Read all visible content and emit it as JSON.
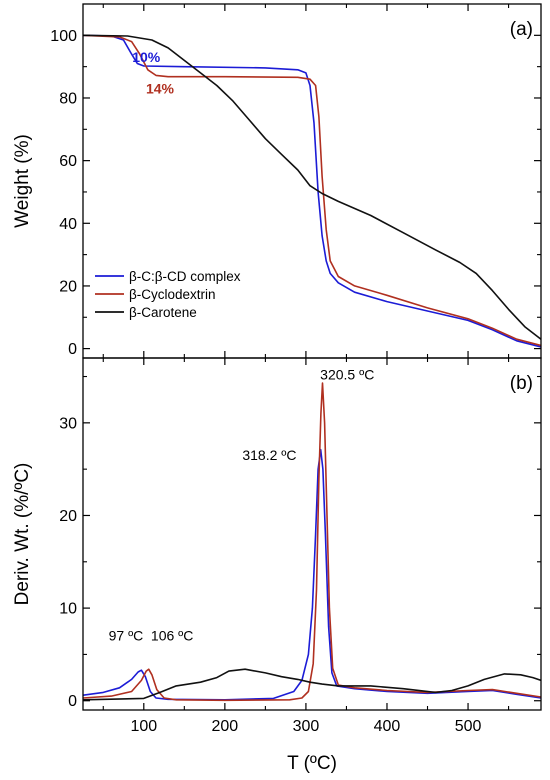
{
  "chart_data": [
    {
      "panel_label": "(a)",
      "type": "line",
      "xlabel": "",
      "ylabel": "Weight (%)",
      "xlim": [
        25,
        590
      ],
      "ylim": [
        -3,
        110
      ],
      "x_ticks": [
        100,
        200,
        300,
        400,
        500
      ],
      "y_ticks": [
        0,
        20,
        40,
        60,
        80,
        100
      ],
      "grid": false,
      "legend_position": "bottom-left",
      "series": [
        {
          "name": "β-C:β-CD complex",
          "color": "#1c1cd6",
          "points": [
            [
              25,
              100
            ],
            [
              60,
              99.8
            ],
            [
              75,
              98.5
            ],
            [
              85,
              94
            ],
            [
              92,
              91
            ],
            [
              100,
              90.2
            ],
            [
              150,
              90
            ],
            [
              250,
              89.6
            ],
            [
              290,
              89
            ],
            [
              300,
              88
            ],
            [
              305,
              84
            ],
            [
              310,
              72
            ],
            [
              315,
              50
            ],
            [
              320,
              36
            ],
            [
              325,
              28
            ],
            [
              330,
              24
            ],
            [
              340,
              21
            ],
            [
              360,
              18
            ],
            [
              400,
              15
            ],
            [
              450,
              12
            ],
            [
              500,
              9
            ],
            [
              530,
              6
            ],
            [
              560,
              2.5
            ],
            [
              590,
              0.5
            ]
          ]
        },
        {
          "name": "β-Cyclodextrin",
          "color": "#b03020",
          "points": [
            [
              25,
              100
            ],
            [
              70,
              99.5
            ],
            [
              85,
              98
            ],
            [
              95,
              94
            ],
            [
              105,
              89
            ],
            [
              115,
              87.2
            ],
            [
              130,
              86.8
            ],
            [
              200,
              86.8
            ],
            [
              290,
              86.6
            ],
            [
              305,
              86
            ],
            [
              312,
              84
            ],
            [
              316,
              74
            ],
            [
              320,
              55
            ],
            [
              325,
              38
            ],
            [
              330,
              28
            ],
            [
              340,
              23
            ],
            [
              360,
              20
            ],
            [
              400,
              17
            ],
            [
              450,
              13
            ],
            [
              500,
              9.5
            ],
            [
              530,
              6.5
            ],
            [
              560,
              3
            ],
            [
              590,
              1
            ]
          ]
        },
        {
          "name": "β-Carotene",
          "color": "#111111",
          "points": [
            [
              25,
              100
            ],
            [
              80,
              99.8
            ],
            [
              110,
              98.5
            ],
            [
              130,
              96
            ],
            [
              150,
              92
            ],
            [
              170,
              88
            ],
            [
              190,
              84
            ],
            [
              210,
              79
            ],
            [
              230,
              73
            ],
            [
              250,
              67
            ],
            [
              270,
              62
            ],
            [
              290,
              57
            ],
            [
              305,
              52
            ],
            [
              320,
              49.5
            ],
            [
              340,
              47
            ],
            [
              380,
              42.5
            ],
            [
              420,
              37
            ],
            [
              460,
              31.5
            ],
            [
              490,
              27.5
            ],
            [
              510,
              24
            ],
            [
              530,
              18.5
            ],
            [
              550,
              12.5
            ],
            [
              570,
              7
            ],
            [
              590,
              3
            ]
          ]
        }
      ],
      "annotations": [
        {
          "text": "10%",
          "x": 103,
          "y": 91.5,
          "color": "#1c1cd6"
        },
        {
          "text": "14%",
          "x": 120,
          "y": 81.5,
          "color": "#b03020"
        }
      ]
    },
    {
      "panel_label": "(b)",
      "type": "line",
      "xlabel": "T (ºC)",
      "ylabel": "Deriv. Wt. (%/ºC)",
      "xlim": [
        25,
        590
      ],
      "ylim": [
        -1,
        37
      ],
      "x_ticks": [
        100,
        200,
        300,
        400,
        500
      ],
      "y_ticks": [
        0,
        10,
        20,
        30
      ],
      "grid": false,
      "series": [
        {
          "name": "β-C:β-CD complex",
          "color": "#1c1cd6",
          "points": [
            [
              25,
              0.6
            ],
            [
              50,
              0.9
            ],
            [
              70,
              1.4
            ],
            [
              85,
              2.3
            ],
            [
              93,
              3.1
            ],
            [
              97,
              3.3
            ],
            [
              102,
              2.6
            ],
            [
              108,
              1
            ],
            [
              115,
              0.3
            ],
            [
              130,
              0.15
            ],
            [
              200,
              0.1
            ],
            [
              260,
              0.25
            ],
            [
              285,
              1
            ],
            [
              295,
              2.2
            ],
            [
              303,
              5
            ],
            [
              308,
              10
            ],
            [
              312,
              18
            ],
            [
              315,
              25
            ],
            [
              318.2,
              27.1
            ],
            [
              321,
              25
            ],
            [
              324,
              18
            ],
            [
              328,
              8
            ],
            [
              332,
              3
            ],
            [
              338,
              1.6
            ],
            [
              360,
              1.3
            ],
            [
              400,
              1
            ],
            [
              450,
              0.8
            ],
            [
              500,
              1
            ],
            [
              530,
              1.1
            ],
            [
              560,
              0.7
            ],
            [
              590,
              0.3
            ]
          ]
        },
        {
          "name": "β-Cyclodextrin",
          "color": "#b03020",
          "points": [
            [
              25,
              0.3
            ],
            [
              60,
              0.5
            ],
            [
              85,
              1
            ],
            [
              97,
              2.2
            ],
            [
              103,
              3.2
            ],
            [
              106,
              3.4
            ],
            [
              110,
              2.8
            ],
            [
              116,
              1.2
            ],
            [
              125,
              0.3
            ],
            [
              140,
              0.1
            ],
            [
              200,
              0.05
            ],
            [
              280,
              0.1
            ],
            [
              295,
              0.3
            ],
            [
              303,
              1
            ],
            [
              309,
              4
            ],
            [
              313,
              12
            ],
            [
              316,
              24
            ],
            [
              318.5,
              31
            ],
            [
              320.5,
              34.3
            ],
            [
              323,
              30
            ],
            [
              326,
              20
            ],
            [
              329,
              10
            ],
            [
              333,
              3.5
            ],
            [
              340,
              1.7
            ],
            [
              360,
              1.4
            ],
            [
              400,
              1.1
            ],
            [
              450,
              0.9
            ],
            [
              500,
              1.1
            ],
            [
              530,
              1.2
            ],
            [
              560,
              0.8
            ],
            [
              590,
              0.4
            ]
          ]
        },
        {
          "name": "β-Carotene",
          "color": "#111111",
          "points": [
            [
              25,
              0.1
            ],
            [
              100,
              0.25
            ],
            [
              120,
              0.9
            ],
            [
              140,
              1.6
            ],
            [
              170,
              2
            ],
            [
              190,
              2.5
            ],
            [
              205,
              3.2
            ],
            [
              225,
              3.4
            ],
            [
              250,
              3
            ],
            [
              270,
              2.6
            ],
            [
              290,
              2.3
            ],
            [
              305,
              2
            ],
            [
              320,
              1.8
            ],
            [
              340,
              1.6
            ],
            [
              380,
              1.6
            ],
            [
              420,
              1.3
            ],
            [
              460,
              0.9
            ],
            [
              480,
              1.1
            ],
            [
              500,
              1.6
            ],
            [
              520,
              2.3
            ],
            [
              545,
              2.9
            ],
            [
              565,
              2.8
            ],
            [
              580,
              2.5
            ],
            [
              590,
              2.2
            ]
          ]
        }
      ],
      "annotations": [
        {
          "text": "97 ºC",
          "x": 78,
          "y": 6.5
        },
        {
          "text": "106 ºC",
          "x": 135,
          "y": 6.5
        },
        {
          "text": "318.2 ºC",
          "x": 255,
          "y": 26
        },
        {
          "text": "320.5 ºC",
          "x": 351,
          "y": 34.7
        }
      ]
    }
  ]
}
